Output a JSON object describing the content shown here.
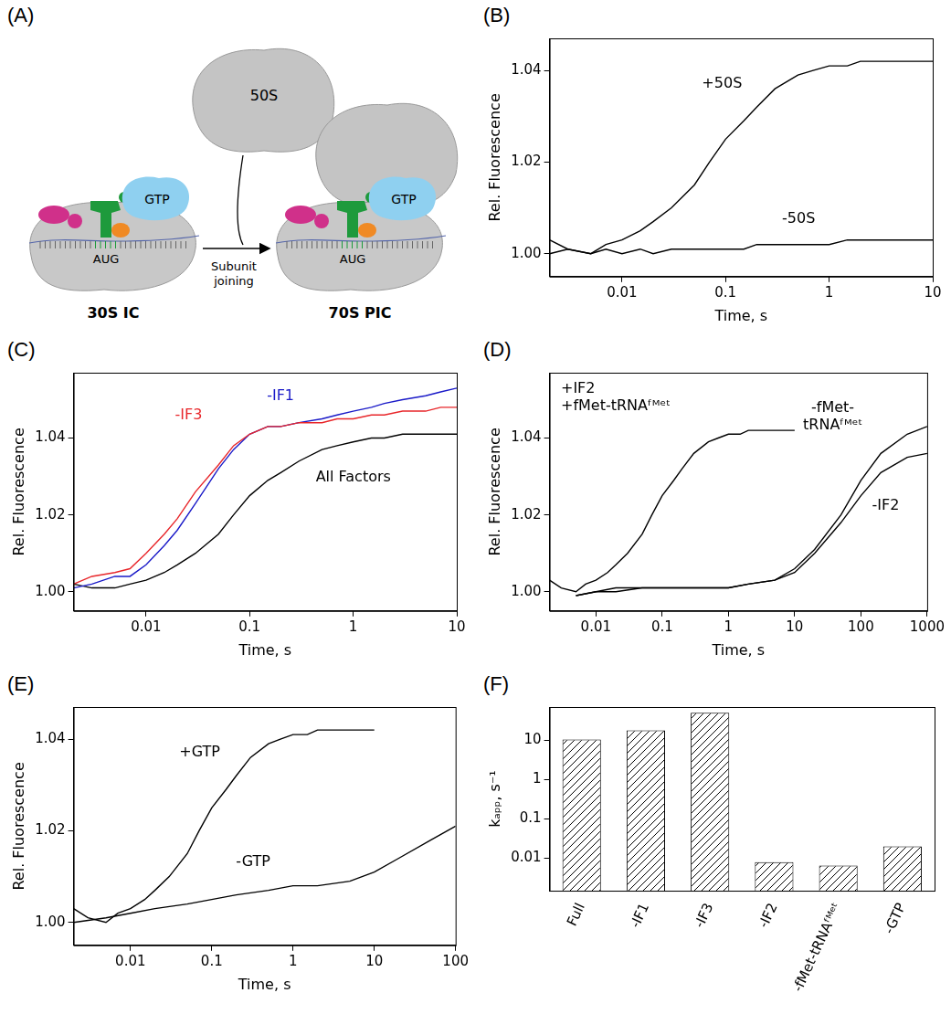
{
  "diagram": {
    "panel_label": "(A)",
    "subunit_large": "50S",
    "complex_start": "30S IC",
    "complex_end": "70S PIC",
    "arrow_label": "Subunit joining",
    "factor_label": "GTP",
    "codon_label": "AUG"
  },
  "chart_data": [
    {
      "panel_label": "(B)",
      "type": "line",
      "x_label": "Time, s",
      "y_label": "Rel. Fluorescence",
      "log": "x",
      "grid": false,
      "xlim": [
        0.002,
        10
      ],
      "xticks": [
        0.01,
        0.1,
        1,
        10
      ],
      "ylim": [
        0.995,
        1.047
      ],
      "yticks": [
        {
          "value": 1.0,
          "label": "1.00"
        },
        {
          "value": 1.02,
          "label": "1.02"
        },
        {
          "value": 1.04,
          "label": "1.04"
        }
      ],
      "series": [
        {
          "name": "+50S",
          "color": "#000000",
          "x": [
            0.002,
            0.003,
            0.005,
            0.007,
            0.01,
            0.015,
            0.02,
            0.03,
            0.05,
            0.07,
            0.1,
            0.15,
            0.2,
            0.3,
            0.5,
            0.7,
            1,
            1.5,
            2,
            3,
            5,
            7,
            10
          ],
          "values": [
            1.003,
            1.001,
            1.0,
            1.002,
            1.003,
            1.005,
            1.007,
            1.01,
            1.015,
            1.02,
            1.025,
            1.029,
            1.032,
            1.036,
            1.039,
            1.04,
            1.041,
            1.041,
            1.042,
            1.042,
            1.042,
            1.042,
            1.042
          ]
        },
        {
          "name": "-50S",
          "color": "#000000",
          "x": [
            0.002,
            0.003,
            0.005,
            0.007,
            0.01,
            0.015,
            0.02,
            0.03,
            0.05,
            0.07,
            0.1,
            0.15,
            0.2,
            0.3,
            0.5,
            0.7,
            1,
            1.5,
            2,
            3,
            5,
            7,
            10
          ],
          "values": [
            1.0,
            1.001,
            1.0,
            1.001,
            1.0,
            1.001,
            1.0,
            1.001,
            1.001,
            1.001,
            1.001,
            1.001,
            1.002,
            1.002,
            1.002,
            1.002,
            1.002,
            1.003,
            1.003,
            1.003,
            1.003,
            1.003,
            1.003
          ]
        }
      ]
    },
    {
      "panel_label": "(C)",
      "type": "line",
      "x_label": "Time, s",
      "y_label": "Rel. Fluorescence",
      "log": "x",
      "grid": false,
      "xlim": [
        0.002,
        10
      ],
      "xticks": [
        0.01,
        0.1,
        1,
        10
      ],
      "ylim": [
        0.995,
        1.057
      ],
      "yticks": [
        {
          "value": 1.0,
          "label": "1.00"
        },
        {
          "value": 1.02,
          "label": "1.02"
        },
        {
          "value": 1.04,
          "label": "1.04"
        }
      ],
      "series": [
        {
          "name": "-IF3",
          "color": "#e8262a",
          "x": [
            0.002,
            0.003,
            0.005,
            0.007,
            0.01,
            0.015,
            0.02,
            0.03,
            0.05,
            0.07,
            0.1,
            0.15,
            0.2,
            0.3,
            0.5,
            0.7,
            1,
            1.5,
            2,
            3,
            5,
            7,
            10
          ],
          "values": [
            1.002,
            1.004,
            1.005,
            1.006,
            1.01,
            1.015,
            1.019,
            1.026,
            1.033,
            1.038,
            1.041,
            1.043,
            1.043,
            1.044,
            1.044,
            1.045,
            1.045,
            1.046,
            1.046,
            1.047,
            1.047,
            1.048,
            1.048
          ]
        },
        {
          "name": "-IF1",
          "color": "#1a1ac8",
          "x": [
            0.002,
            0.003,
            0.005,
            0.007,
            0.01,
            0.015,
            0.02,
            0.03,
            0.05,
            0.07,
            0.1,
            0.15,
            0.2,
            0.3,
            0.5,
            0.7,
            1,
            1.5,
            2,
            3,
            5,
            7,
            10
          ],
          "values": [
            1.001,
            1.002,
            1.004,
            1.004,
            1.007,
            1.012,
            1.016,
            1.023,
            1.032,
            1.037,
            1.041,
            1.043,
            1.043,
            1.044,
            1.045,
            1.046,
            1.047,
            1.048,
            1.049,
            1.05,
            1.051,
            1.052,
            1.053
          ]
        },
        {
          "name": "All Factors",
          "color": "#000000",
          "x": [
            0.002,
            0.003,
            0.005,
            0.007,
            0.01,
            0.015,
            0.02,
            0.03,
            0.05,
            0.07,
            0.1,
            0.15,
            0.2,
            0.3,
            0.5,
            0.7,
            1,
            1.5,
            2,
            3,
            5,
            7,
            10
          ],
          "values": [
            1.002,
            1.001,
            1.001,
            1.002,
            1.003,
            1.005,
            1.007,
            1.01,
            1.015,
            1.02,
            1.025,
            1.029,
            1.031,
            1.034,
            1.037,
            1.038,
            1.039,
            1.04,
            1.04,
            1.041,
            1.041,
            1.041,
            1.041
          ]
        }
      ]
    },
    {
      "panel_label": "(D)",
      "type": "line",
      "x_label": "Time, s",
      "y_label": "Rel. Fluorescence",
      "log": "x",
      "grid": false,
      "xlim": [
        0.002,
        1000
      ],
      "xticks": [
        0.01,
        0.1,
        1,
        10,
        100,
        1000
      ],
      "ylim": [
        0.995,
        1.057
      ],
      "yticks": [
        {
          "value": 1.0,
          "label": "1.00"
        },
        {
          "value": 1.02,
          "label": "1.02"
        },
        {
          "value": 1.04,
          "label": "1.04"
        }
      ],
      "series": [
        {
          "name": "+IF2 +fMet-tRNAᶠᴹᵉᵗ",
          "color": "#000000",
          "x": [
            0.002,
            0.003,
            0.005,
            0.007,
            0.01,
            0.015,
            0.02,
            0.03,
            0.05,
            0.07,
            0.1,
            0.15,
            0.2,
            0.3,
            0.5,
            0.7,
            1,
            1.5,
            2,
            3,
            5,
            7,
            10
          ],
          "values": [
            1.003,
            1.001,
            1.0,
            1.002,
            1.003,
            1.005,
            1.007,
            1.01,
            1.015,
            1.02,
            1.025,
            1.029,
            1.032,
            1.036,
            1.039,
            1.04,
            1.041,
            1.041,
            1.042,
            1.042,
            1.042,
            1.042,
            1.042
          ]
        },
        {
          "name": "-fMet-tRNAᶠᴹᵉᵗ",
          "color": "#000000",
          "x": [
            0.005,
            0.01,
            0.02,
            0.05,
            0.1,
            0.2,
            0.5,
            1,
            2,
            5,
            10,
            20,
            50,
            100,
            200,
            500,
            1000
          ],
          "values": [
            0.999,
            1.0,
            1.001,
            1.001,
            1.001,
            1.001,
            1.001,
            1.001,
            1.002,
            1.003,
            1.006,
            1.011,
            1.02,
            1.029,
            1.036,
            1.041,
            1.043
          ]
        },
        {
          "name": "-IF2",
          "color": "#000000",
          "x": [
            0.005,
            0.01,
            0.02,
            0.05,
            0.1,
            0.2,
            0.5,
            1,
            2,
            5,
            10,
            20,
            50,
            100,
            200,
            500,
            1000
          ],
          "values": [
            0.999,
            1.0,
            1.0,
            1.001,
            1.001,
            1.001,
            1.001,
            1.001,
            1.002,
            1.003,
            1.005,
            1.01,
            1.018,
            1.025,
            1.031,
            1.035,
            1.036
          ]
        }
      ]
    },
    {
      "panel_label": "(E)",
      "type": "line",
      "x_label": "Time, s",
      "y_label": "Rel. Fluorescence",
      "log": "x",
      "grid": false,
      "xlim": [
        0.002,
        100
      ],
      "xticks": [
        0.01,
        0.1,
        1,
        10,
        100
      ],
      "ylim": [
        0.995,
        1.047
      ],
      "yticks": [
        {
          "value": 1.0,
          "label": "1.00"
        },
        {
          "value": 1.02,
          "label": "1.02"
        },
        {
          "value": 1.04,
          "label": "1.04"
        }
      ],
      "series": [
        {
          "name": "+GTP",
          "color": "#000000",
          "x": [
            0.002,
            0.003,
            0.005,
            0.007,
            0.01,
            0.015,
            0.02,
            0.03,
            0.05,
            0.07,
            0.1,
            0.15,
            0.2,
            0.3,
            0.5,
            0.7,
            1,
            1.5,
            2,
            3,
            5,
            7,
            10
          ],
          "values": [
            1.003,
            1.001,
            1.0,
            1.002,
            1.003,
            1.005,
            1.007,
            1.01,
            1.015,
            1.02,
            1.025,
            1.029,
            1.032,
            1.036,
            1.039,
            1.04,
            1.041,
            1.041,
            1.042,
            1.042,
            1.042,
            1.042,
            1.042
          ]
        },
        {
          "name": "-GTP",
          "color": "#000000",
          "x": [
            0.002,
            0.005,
            0.01,
            0.02,
            0.05,
            0.1,
            0.2,
            0.5,
            1,
            2,
            5,
            10,
            20,
            50,
            100
          ],
          "values": [
            1.0,
            1.001,
            1.002,
            1.003,
            1.004,
            1.005,
            1.006,
            1.007,
            1.008,
            1.008,
            1.009,
            1.011,
            1.014,
            1.018,
            1.021
          ]
        }
      ]
    },
    {
      "panel_label": "(F)",
      "type": "bar",
      "y_label": "kₐₚₚ, s⁻¹",
      "log": "y",
      "grid": false,
      "color": "#000000",
      "categories": [
        "Full",
        "-IF1",
        "-IF3",
        "-IF2",
        "-fMet-tRNAᶠᴹᵉᵗ",
        "-GTP"
      ],
      "values": [
        10.5,
        18,
        50,
        0.008,
        0.0065,
        0.02
      ],
      "ylim": [
        0.0015,
        70
      ],
      "yticks": [
        0.01,
        0.1,
        1,
        10
      ]
    }
  ]
}
